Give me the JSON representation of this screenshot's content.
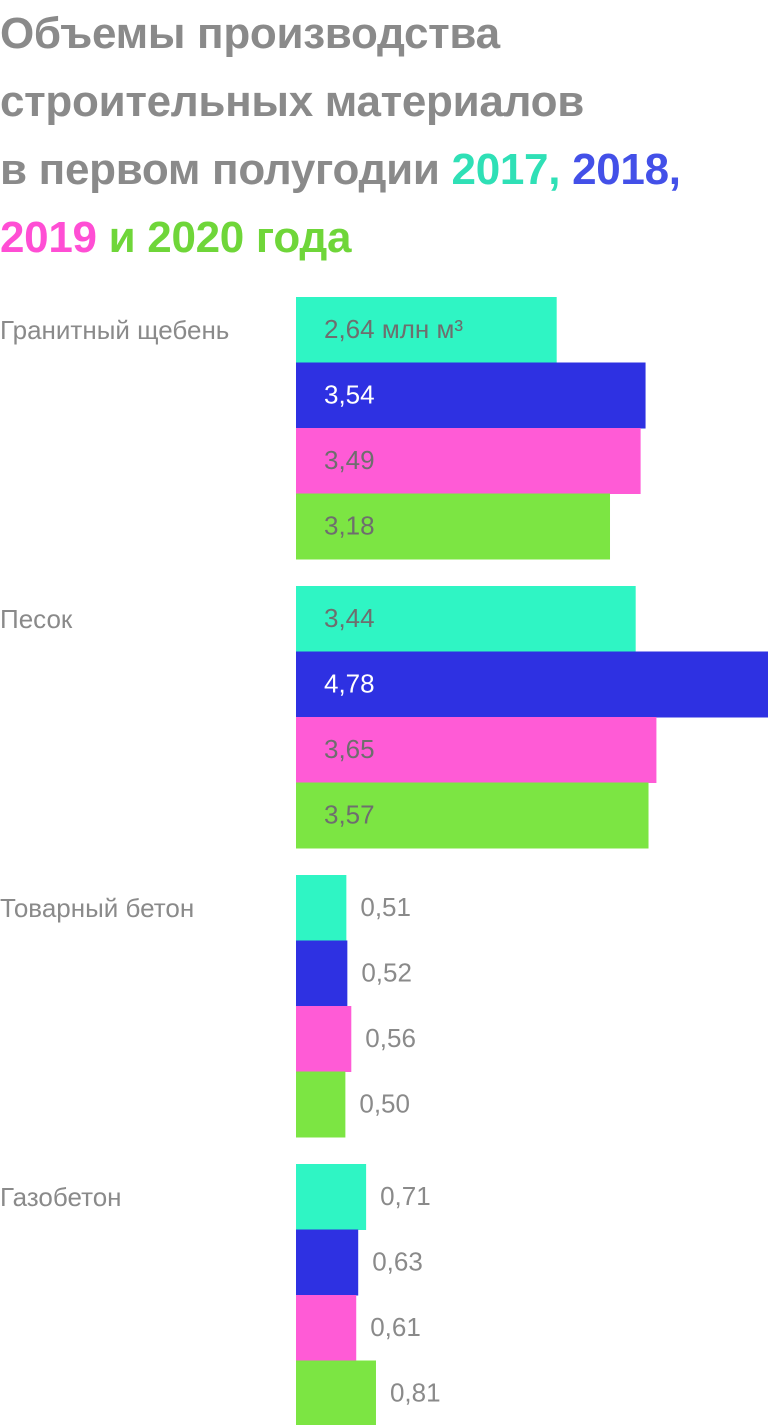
{
  "chart_data": {
    "type": "bar",
    "orientation": "horizontal",
    "title_lines": [
      [
        {
          "text": "Объемы производства",
          "series": null
        }
      ],
      [
        {
          "text": "строительных материалов",
          "series": null
        }
      ],
      [
        {
          "text": "в первом полугодии ",
          "series": null
        },
        {
          "text": "2017, ",
          "series": 0
        },
        {
          "text": "2018,",
          "series": 1
        }
      ],
      [
        {
          "text": "2019",
          "series": 2
        },
        {
          "text": " и 2020 года",
          "series": 3
        }
      ]
    ],
    "categories": [
      "Гранитный щебень",
      "Песок",
      "Товарный бетон",
      "Газобетон"
    ],
    "series": [
      {
        "name": "2017",
        "color": "#2ff5c4",
        "values": [
          2.64,
          3.44,
          0.51,
          0.71
        ],
        "labels": [
          "2,64 млн м³",
          "3,44",
          "0,51",
          "0,71"
        ]
      },
      {
        "name": "2018",
        "color": "#2e31e2",
        "values": [
          3.54,
          4.78,
          0.52,
          0.63
        ],
        "labels": [
          "3,54",
          "4,78",
          "0,52",
          "0,63"
        ]
      },
      {
        "name": "2019",
        "color": "#ff5bd6",
        "values": [
          3.49,
          3.65,
          0.56,
          0.61
        ],
        "labels": [
          "3,49",
          "3,65",
          "0,56",
          "0,61"
        ]
      },
      {
        "name": "2020",
        "color": "#7ce543",
        "values": [
          3.18,
          3.57,
          0.5,
          0.81
        ],
        "labels": [
          "3,18",
          "3,57",
          "0,50",
          "0,81"
        ]
      }
    ],
    "title_colors": {
      "text": "#8a8a8a",
      "series": [
        "#2fe0b6",
        "#4350e8",
        "#ff4ed4",
        "#6fd639"
      ]
    },
    "label_colors": {
      "on_light": "#6e6e6e",
      "on_dark": "#ffffff",
      "outside": "#8a8a8a"
    },
    "xlim": [
      0,
      4.78
    ],
    "grid": false,
    "legend": "in-title"
  }
}
